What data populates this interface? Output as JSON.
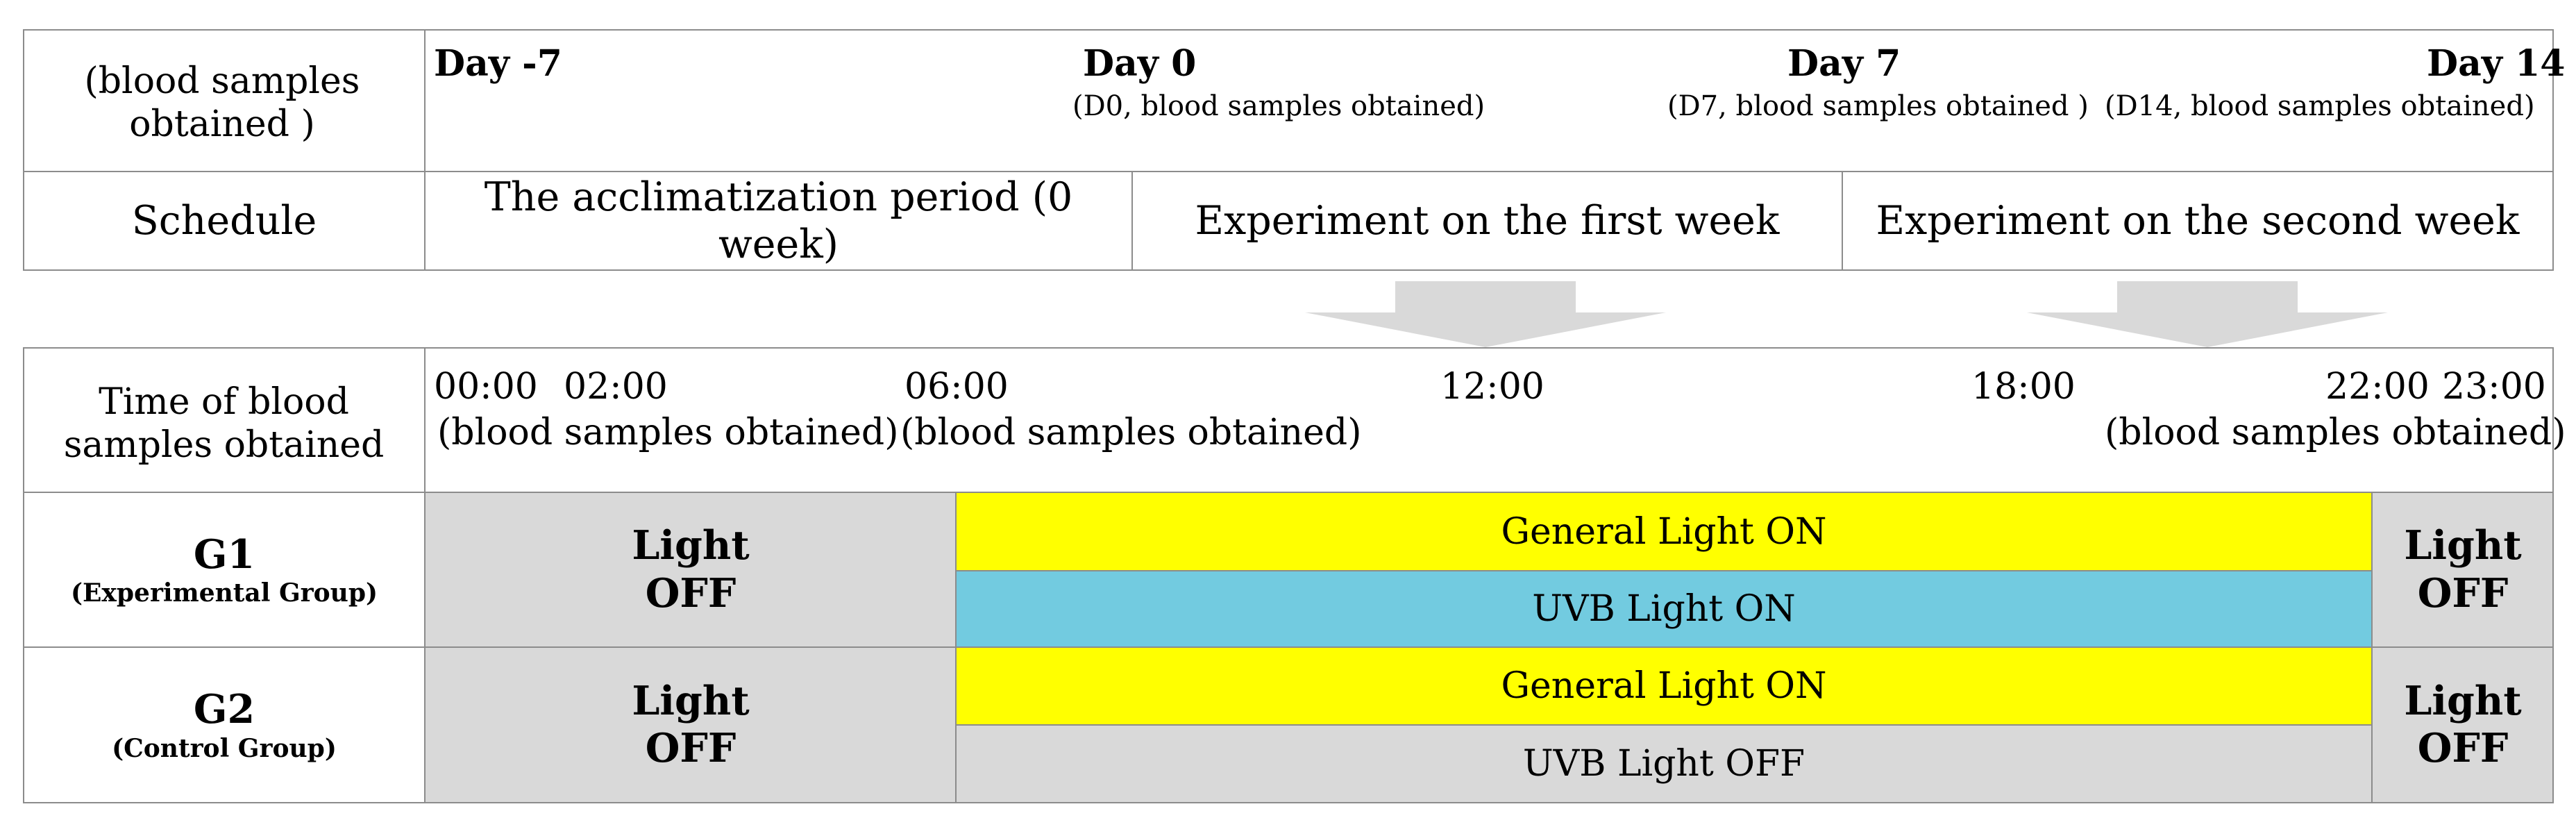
{
  "top": {
    "row1_label": "(blood samples obtained )",
    "days": [
      {
        "day": "Day -7",
        "note": ""
      },
      {
        "day": "Day 0",
        "note": "(D0, blood samples obtained)"
      },
      {
        "day": "Day 7",
        "note": "(D7, blood samples obtained )"
      },
      {
        "day": "Day 14",
        "note": "(D14, blood samples obtained)"
      }
    ],
    "schedule_label": "Schedule",
    "periods": [
      "The acclimatization period (0 week)",
      "Experiment on the first week",
      "Experiment on the second week"
    ]
  },
  "bottom": {
    "time_label": "Time of blood samples obtained",
    "times": [
      "00:00",
      "02:00",
      "06:00",
      "12:00",
      "18:00",
      "22:00",
      "23:00"
    ],
    "sample_notes": [
      "(blood samples obtained)",
      "(blood samples obtained)",
      "(blood samples obtained)"
    ],
    "groups": [
      {
        "name": "G1",
        "desc": "(Experimental Group)",
        "left_light": "Light OFF",
        "general": "General Light ON",
        "uvb": "UVB Light ON",
        "right_light": "Light OFF"
      },
      {
        "name": "G2",
        "desc": "(Control Group)",
        "left_light": "Light OFF",
        "general": "General Light ON",
        "uvb": "UVB Light OFF",
        "right_light": "Light OFF"
      }
    ]
  },
  "colors": {
    "general_light": "#ffff00",
    "uvb_on": "#72cbe0",
    "off": "#d9d9d9",
    "arrow": "#d9d9d9"
  }
}
